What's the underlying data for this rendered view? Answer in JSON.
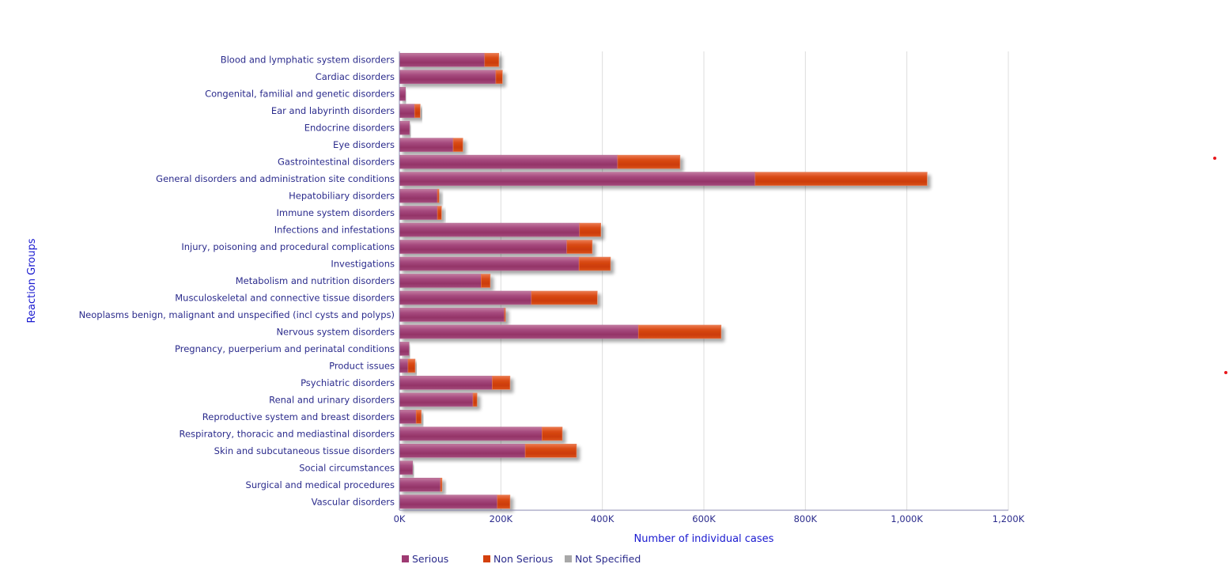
{
  "chart_data": {
    "type": "bar",
    "orientation": "horizontal",
    "stacked": true,
    "title": "",
    "xlabel": "Number of individual cases",
    "ylabel": "Reaction Groups",
    "xlim": [
      0,
      1200
    ],
    "x_unit": "K",
    "x_ticks": [
      "0K",
      "200K",
      "400K",
      "600K",
      "800K",
      "1,000K",
      "1,200K"
    ],
    "x_tick_values": [
      0,
      200,
      400,
      600,
      800,
      1000,
      1200
    ],
    "grid": "vertical",
    "legend_position": "bottom",
    "categories": [
      "Blood and lymphatic system disorders",
      "Cardiac disorders",
      "Congenital, familial and genetic disorders",
      "Ear and labyrinth disorders",
      "Endocrine disorders",
      "Eye disorders",
      "Gastrointestinal disorders",
      "General disorders and administration site conditions",
      "Hepatobiliary disorders",
      "Immune system disorders",
      "Infections and infestations",
      "Injury, poisoning and procedural complications",
      "Investigations",
      "Metabolism and nutrition disorders",
      "Musculoskeletal and connective tissue disorders",
      "Neoplasms benign, malignant and unspecified (incl cysts and polyps)",
      "Nervous system disorders",
      "Pregnancy, puerperium and perinatal conditions",
      "Product issues",
      "Psychiatric disorders",
      "Renal and urinary disorders",
      "Reproductive system and breast disorders",
      "Respiratory, thoracic and mediastinal disorders",
      "Skin and subcutaneous tissue disorders",
      "Social circumstances",
      "Surgical and medical procedures",
      "Vascular disorders"
    ],
    "series": [
      {
        "name": "Serious",
        "color": "#9e3a72",
        "values": [
          168,
          190,
          12,
          30,
          20,
          106,
          430,
          701,
          75,
          75,
          355,
          330,
          354,
          161,
          260,
          207,
          471,
          19,
          17,
          183,
          145,
          33,
          281,
          248,
          26,
          81,
          193
        ]
      },
      {
        "name": "Non Serious",
        "color": "#d4400c",
        "values": [
          28,
          13,
          0,
          11,
          0,
          19,
          123,
          339,
          3,
          8,
          42,
          50,
          62,
          18,
          130,
          2,
          163,
          0,
          14,
          35,
          8,
          10,
          40,
          101,
          0,
          3,
          25
        ]
      },
      {
        "name": "Not Specified",
        "color": "#a8a8a8",
        "values": [
          0,
          0,
          0,
          0,
          0,
          0,
          0,
          0,
          0,
          0,
          0,
          0,
          0,
          0,
          0,
          0,
          0,
          0,
          0,
          0,
          0,
          0,
          0,
          0,
          0,
          0,
          0
        ]
      }
    ]
  },
  "markers": {
    "color": "#e8161b",
    "count": 2
  }
}
